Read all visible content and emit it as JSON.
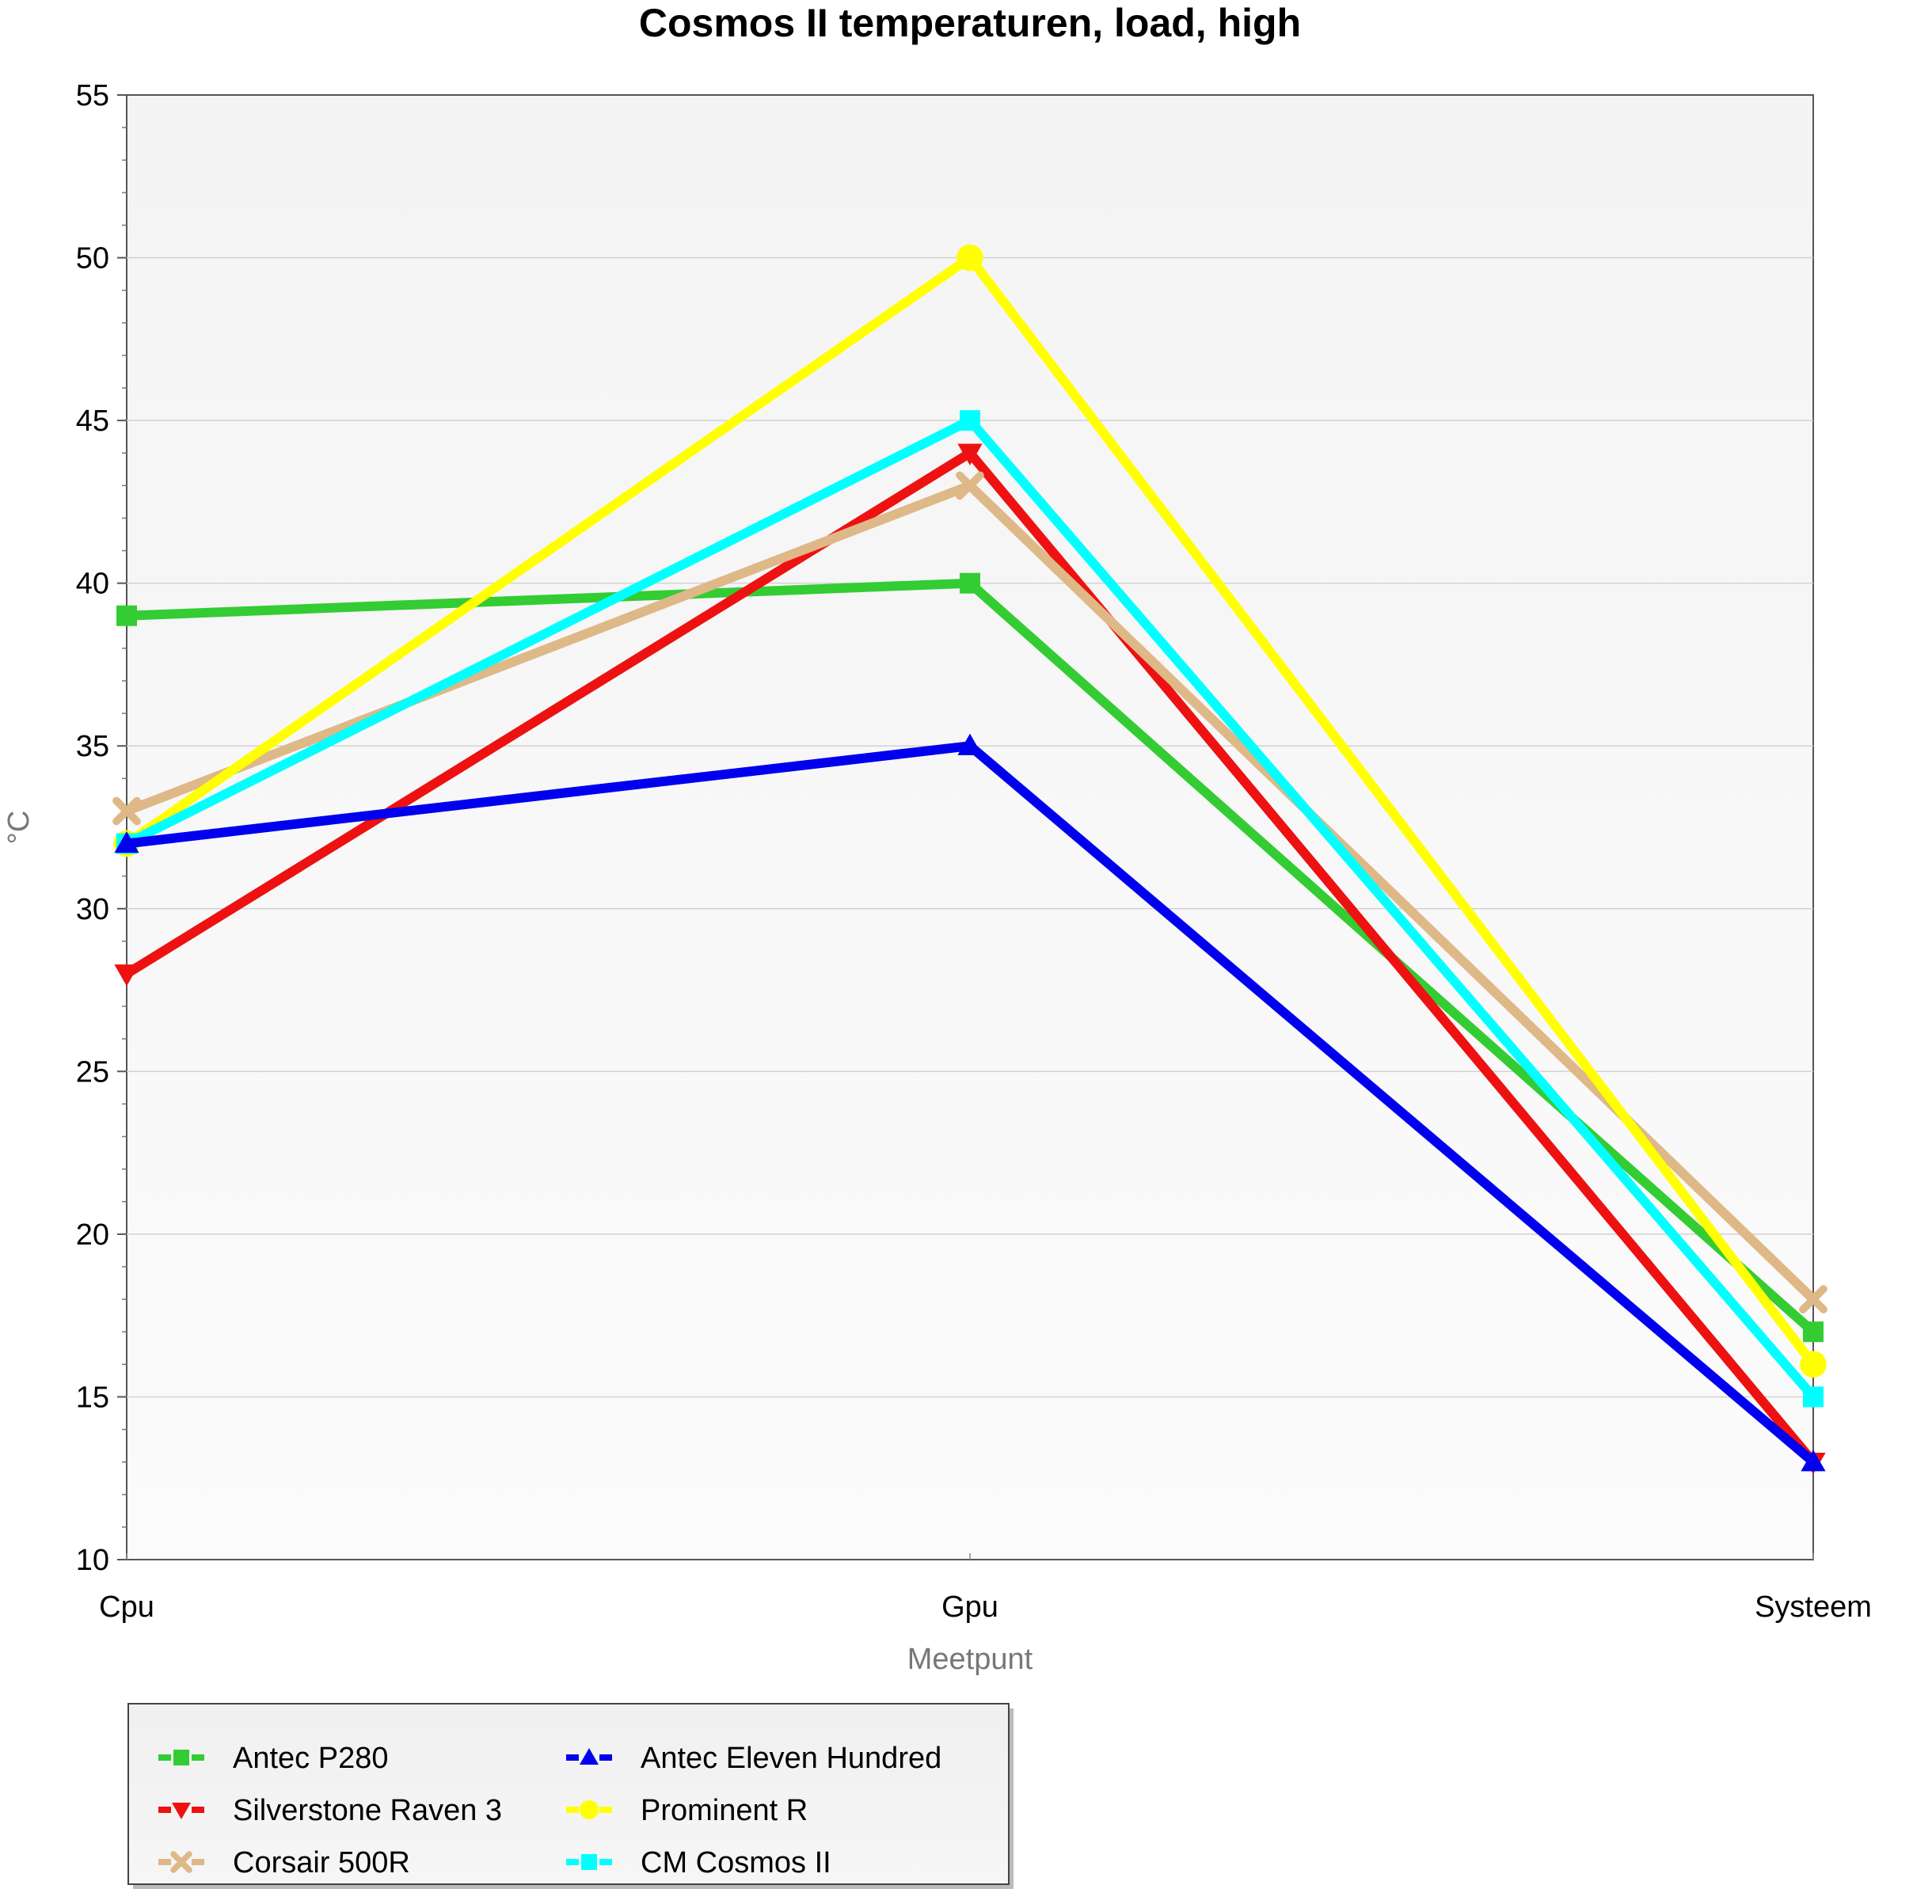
{
  "chart_data": {
    "type": "line",
    "title": "Cosmos II temperaturen, load, high",
    "xlabel": "Meetpunt",
    "ylabel": "°C",
    "categories": [
      "Cpu",
      "Gpu",
      "Systeem"
    ],
    "ylim": [
      10,
      55
    ],
    "yticks": [
      10,
      15,
      20,
      25,
      30,
      35,
      40,
      45,
      50,
      55
    ],
    "grid": true,
    "legend_position": "bottom-left",
    "series": [
      {
        "name": "Antec P280",
        "values": [
          39,
          40,
          17
        ],
        "color": "#33cc33",
        "marker": "square"
      },
      {
        "name": "Silverstone Raven 3",
        "values": [
          28,
          44,
          13
        ],
        "color": "#ee1111",
        "marker": "triangle-down"
      },
      {
        "name": "Corsair 500R",
        "values": [
          33,
          43,
          18
        ],
        "color": "#deb887",
        "marker": "x"
      },
      {
        "name": "Antec Eleven Hundred",
        "values": [
          32,
          35,
          13
        ],
        "color": "#0000ee",
        "marker": "triangle-up"
      },
      {
        "name": "Prominent R",
        "values": [
          32,
          50,
          16
        ],
        "color": "#ffff00",
        "marker": "circle"
      },
      {
        "name": "CM Cosmos II",
        "values": [
          32,
          45,
          15
        ],
        "color": "#00ffff",
        "marker": "square"
      }
    ],
    "draw_order": [
      0,
      1,
      2,
      4,
      5,
      3
    ]
  }
}
